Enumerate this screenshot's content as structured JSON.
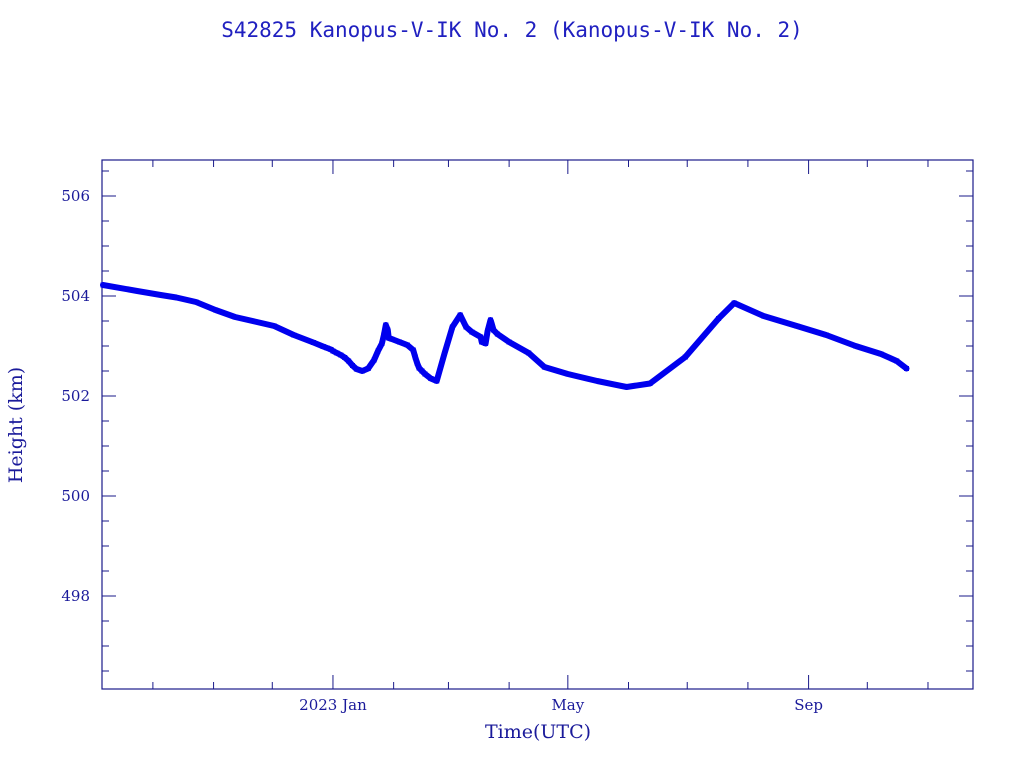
{
  "chart_data": {
    "type": "line",
    "title": "S42825 Kanopus-V-IK No. 2  (Kanopus-V-IK No. 2)",
    "xlabel": "Time(UTC)",
    "ylabel": "Height (km)",
    "x_units": "days since 2023-01-01",
    "xlim": [
      -118,
      327
    ],
    "ylim": [
      496.14,
      506.72
    ],
    "x_major_ticks": [
      {
        "value": 0,
        "label": "2023 Jan"
      },
      {
        "value": 120,
        "label": "May"
      },
      {
        "value": 243,
        "label": "Sep"
      }
    ],
    "x_minor_ticks": [
      -92,
      -61,
      -31,
      31,
      59,
      90,
      151,
      181,
      212,
      273,
      304
    ],
    "y_major_ticks": [
      {
        "value": 498,
        "label": "498"
      },
      {
        "value": 500,
        "label": "500"
      },
      {
        "value": 502,
        "label": "502"
      },
      {
        "value": 504,
        "label": "504"
      },
      {
        "value": 506,
        "label": "506"
      }
    ],
    "y_minor_step": 0.5,
    "grid": false,
    "series": [
      {
        "name": "Height",
        "color": "#0000ee",
        "x": [
          -117.5,
          -100,
          -88,
          -80,
          -70,
          -60,
          -50,
          -40,
          -30,
          -20,
          -10,
          -5,
          -3,
          -1,
          0,
          2,
          4,
          6,
          8,
          10,
          12,
          15,
          18,
          21,
          23,
          25,
          26,
          27,
          28,
          28.5,
          30,
          34,
          38,
          41,
          42,
          43,
          44,
          45.5,
          47,
          50,
          53,
          57,
          61,
          65,
          68,
          71,
          75.5,
          76,
          78,
          79,
          80.5,
          81,
          82,
          84,
          90,
          100,
          108,
          120,
          135,
          150,
          162,
          180,
          197,
          205,
          220,
          237,
          252,
          267,
          280,
          288,
          293
        ],
        "y": [
          504.22,
          504.1,
          504.02,
          503.97,
          503.88,
          503.72,
          503.58,
          503.49,
          503.4,
          503.22,
          503.07,
          502.99,
          502.96,
          502.93,
          502.9,
          502.86,
          502.82,
          502.77,
          502.7,
          502.61,
          502.54,
          502.5,
          502.55,
          502.72,
          502.9,
          503.05,
          503.22,
          503.42,
          503.32,
          503.16,
          503.14,
          503.08,
          503.02,
          502.92,
          502.78,
          502.66,
          502.56,
          502.5,
          502.44,
          502.35,
          502.3,
          502.85,
          503.38,
          503.62,
          503.38,
          503.28,
          503.18,
          503.08,
          503.05,
          503.3,
          503.52,
          503.46,
          503.32,
          503.24,
          503.08,
          502.86,
          502.58,
          502.44,
          502.3,
          502.18,
          502.25,
          502.78,
          503.55,
          503.86,
          503.6,
          503.4,
          503.22,
          503.0,
          502.84,
          502.7,
          502.55
        ]
      }
    ]
  }
}
